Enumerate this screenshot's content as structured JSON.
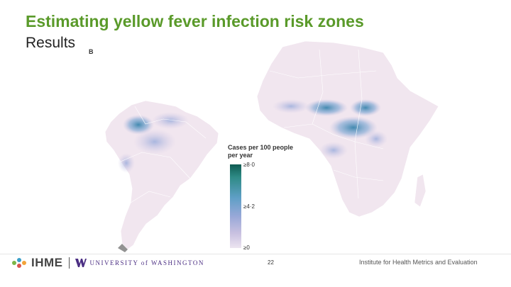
{
  "slide": {
    "title": "Estimating yellow fever infection risk zones",
    "subtitle": "Results",
    "panel_label": "B",
    "page_number": "22"
  },
  "legend": {
    "title": "Cases per 100 people per year",
    "ticks": [
      "≥8·0",
      "≥4·2",
      "≥0"
    ],
    "color_high": "#0f5b52",
    "color_mid": "#5f9fc6",
    "color_low": "#ece4f0"
  },
  "map": {
    "regions": [
      "South America",
      "Africa"
    ],
    "land_color": "#f1e6ef",
    "border_color": "#ffffff"
  },
  "footer": {
    "org_logo": "IHME",
    "university": "UNIVERSITY of WASHINGTON",
    "institute": "Institute for Health Metrics and Evaluation"
  }
}
